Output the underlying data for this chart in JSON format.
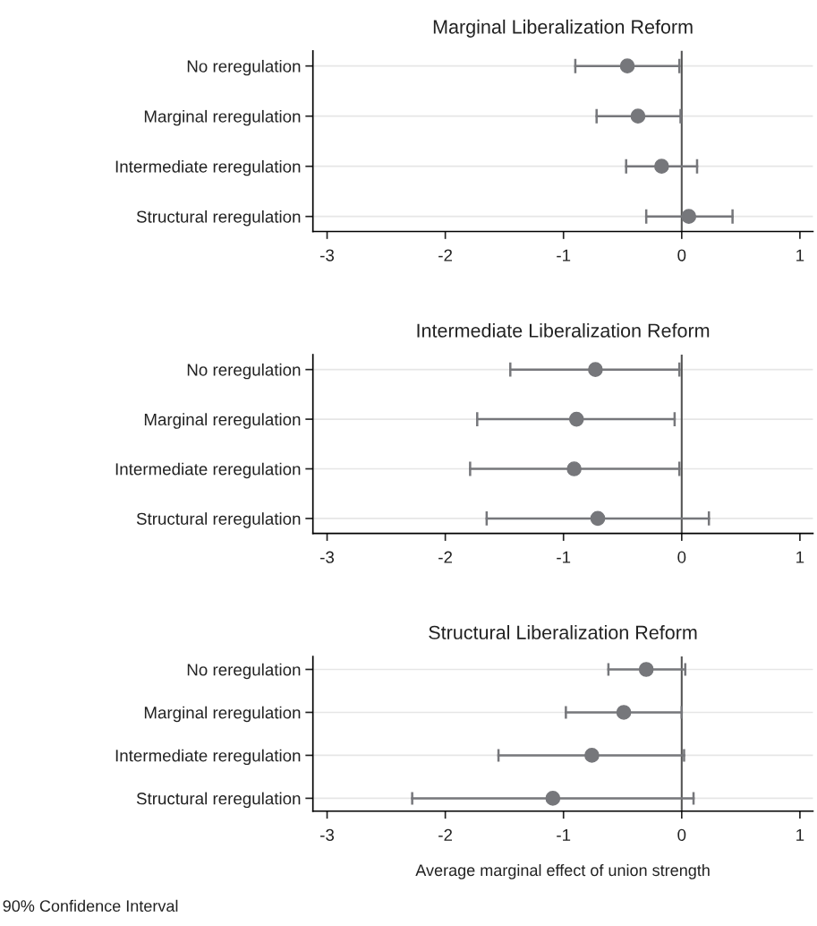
{
  "chart_data": [
    {
      "type": "scatter",
      "orientation": "horizontal",
      "title": "Marginal Liberalization Reform",
      "categories": [
        "No reregulation",
        "Marginal reregulation",
        "Intermediate reregulation",
        "Structural reregulation"
      ],
      "series": [
        {
          "color": "#76777b",
          "values": [
            -0.46,
            -0.37,
            -0.17,
            0.06
          ],
          "errors": [
            [
              -0.9,
              -0.02
            ],
            [
              -0.72,
              -0.01
            ],
            [
              -0.47,
              0.13
            ],
            [
              -0.3,
              0.43
            ]
          ]
        }
      ],
      "xlim": [
        -3.12,
        1.11
      ],
      "xticks": [
        -3,
        -2,
        -1,
        0,
        1
      ],
      "grid": "y",
      "marker": "circle",
      "ref_lines": [
        {
          "axis": "x",
          "value": 0,
          "color": "#555555"
        }
      ]
    },
    {
      "type": "scatter",
      "orientation": "horizontal",
      "title": "Intermediate Liberalization Reform",
      "categories": [
        "No reregulation",
        "Marginal reregulation",
        "Intermediate reregulation",
        "Structural reregulation"
      ],
      "series": [
        {
          "color": "#76777b",
          "values": [
            -0.73,
            -0.89,
            -0.91,
            -0.71
          ],
          "errors": [
            [
              -1.45,
              -0.02
            ],
            [
              -1.73,
              -0.06
            ],
            [
              -1.79,
              -0.02
            ],
            [
              -1.65,
              0.23
            ]
          ]
        }
      ],
      "xlim": [
        -3.12,
        1.11
      ],
      "xticks": [
        -3,
        -2,
        -1,
        0,
        1
      ],
      "grid": "y",
      "marker": "circle",
      "ref_lines": [
        {
          "axis": "x",
          "value": 0,
          "color": "#555555"
        }
      ]
    },
    {
      "type": "scatter",
      "orientation": "horizontal",
      "title": "Structural Liberalization Reform",
      "xlabel": "Average marginal effect of union strength",
      "categories": [
        "No reregulation",
        "Marginal reregulation",
        "Intermediate reregulation",
        "Structural reregulation"
      ],
      "series": [
        {
          "color": "#76777b",
          "values": [
            -0.3,
            -0.49,
            -0.76,
            -1.09
          ],
          "errors": [
            [
              -0.62,
              0.03
            ],
            [
              -0.98,
              0.0
            ],
            [
              -1.55,
              0.02
            ],
            [
              -2.28,
              0.1
            ]
          ]
        }
      ],
      "xlim": [
        -3.12,
        1.11
      ],
      "xticks": [
        -3,
        -2,
        -1,
        0,
        1
      ],
      "grid": "y",
      "marker": "circle",
      "ref_lines": [
        {
          "axis": "x",
          "value": 0,
          "color": "#555555"
        }
      ],
      "annotations": [
        "90% Confidence Interval"
      ]
    }
  ]
}
